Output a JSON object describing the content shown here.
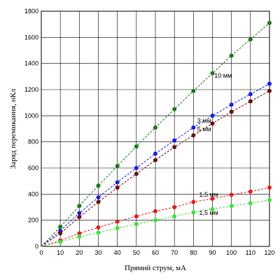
{
  "chart_data": {
    "type": "line",
    "xlabel": "Прямий струм, мА",
    "ylabel": "Заряд перемикання, нКл",
    "xlim": [
      0,
      120
    ],
    "ylim": [
      0,
      1800
    ],
    "xticks": [
      "0",
      "10",
      "20",
      "30",
      "40",
      "50",
      "60",
      "70",
      "80",
      "90",
      "100",
      "110",
      "120"
    ],
    "yticks": [
      "0",
      "200",
      "400",
      "600",
      "800",
      "1000",
      "1200",
      "1400",
      "1600",
      "1800"
    ],
    "grid": true,
    "x": [
      0,
      10,
      20,
      30,
      40,
      50,
      60,
      70,
      80,
      90,
      100,
      110,
      120
    ],
    "series": [
      {
        "name": "10 мм",
        "color": "#1a7a1a",
        "values": [
          0,
          150,
          310,
          465,
          615,
          765,
          910,
          1050,
          1190,
          1325,
          1460,
          1585,
          1710
        ]
      },
      {
        "name": "3 мм",
        "color": "#1e1ee6",
        "values": [
          0,
          120,
          255,
          375,
          490,
          600,
          710,
          810,
          910,
          1000,
          1085,
          1165,
          1245
        ]
      },
      {
        "name": "5 мм",
        "color": "#6b1010",
        "values": [
          0,
          100,
          225,
          340,
          450,
          555,
          660,
          760,
          850,
          940,
          1030,
          1110,
          1190
        ]
      },
      {
        "name": "1,5 мм",
        "color": "#e81e1e",
        "values": [
          0,
          45,
          100,
          145,
          190,
          230,
          270,
          300,
          340,
          365,
          395,
          420,
          450
        ]
      },
      {
        "name": "1,5 мм",
        "color": "#3fe33f",
        "values": [
          0,
          35,
          75,
          105,
          140,
          170,
          200,
          230,
          260,
          285,
          310,
          330,
          355
        ]
      }
    ]
  }
}
